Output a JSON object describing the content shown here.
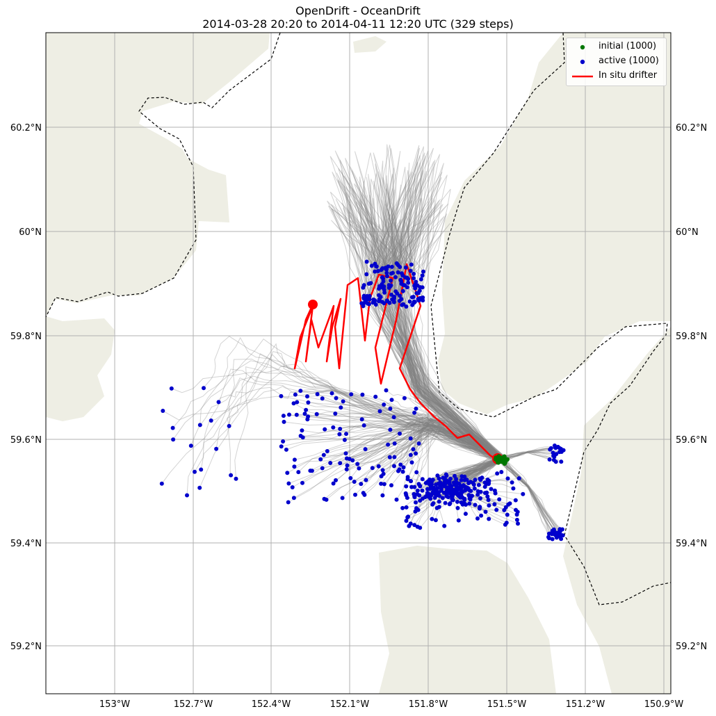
{
  "title": {
    "line1": "OpenDrift - OceanDrift",
    "line2": "2014-03-28 20:20 to 2014-04-11 12:20 UTC (329 steps)"
  },
  "lon_ticks": [
    "153°W",
    "152.7°W",
    "152.4°W",
    "152.1°W",
    "151.8°W",
    "151.5°W",
    "151.2°W",
    "150.9°W"
  ],
  "lat_ticks": [
    "60.2°N",
    "60°N",
    "59.8°N",
    "59.6°N",
    "59.4°N",
    "59.2°N"
  ],
  "legend": {
    "initial": "initial (1000)",
    "active": "active (1000)",
    "drifter": "In situ drifter"
  },
  "colors": {
    "land": "#eeeee4",
    "trajectories": "#808080",
    "initial": "#007700",
    "active": "#0000cc",
    "drifter": "#ff0000",
    "grid": "#b0b0b0"
  },
  "chart_data": {
    "type": "map",
    "extent_lon": [
      -153.2,
      -150.87
    ],
    "extent_lat": [
      59.1,
      60.37
    ],
    "grid": true,
    "legend_position": "top-right",
    "initial_count": 1000,
    "active_count": 1000,
    "steps": 329,
    "seed_location": {
      "lon": -151.5,
      "lat": 59.56
    },
    "drifter_end": {
      "lon": -152.22,
      "lat": 59.86
    }
  }
}
